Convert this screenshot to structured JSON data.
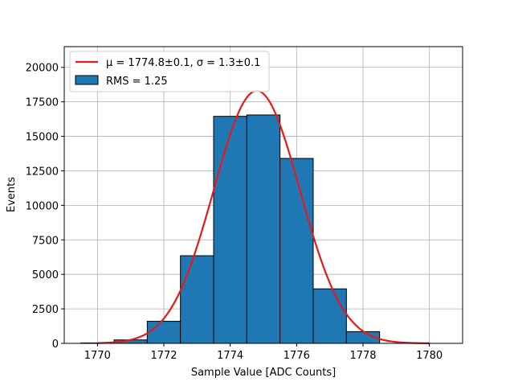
{
  "chart_data": {
    "type": "bar",
    "xlabel": "Sample Value [ADC Counts]",
    "ylabel": "Events",
    "xlim": [
      1769.0,
      1781.0
    ],
    "ylim": [
      0,
      21500
    ],
    "xticks": [
      1770,
      1772,
      1774,
      1776,
      1778,
      1780
    ],
    "xtick_labels": [
      "1770",
      "1772",
      "1774",
      "1776",
      "1778",
      "1780"
    ],
    "yticks": [
      0,
      2500,
      5000,
      7500,
      10000,
      12500,
      15000,
      17500,
      20000
    ],
    "ytick_labels": [
      "0",
      "2500",
      "5000",
      "7500",
      "10000",
      "12500",
      "15000",
      "17500",
      "20000"
    ],
    "grid": true,
    "legend_position": "top-left",
    "histogram": {
      "name": "RMS = 1.25",
      "color": "#1f77b4",
      "edge_color": "#000000",
      "bins": [
        {
          "x0": 1769.5,
          "x1": 1770.5,
          "count": 30
        },
        {
          "x0": 1770.5,
          "x1": 1771.5,
          "count": 250
        },
        {
          "x0": 1771.5,
          "x1": 1772.5,
          "count": 1600
        },
        {
          "x0": 1772.5,
          "x1": 1773.5,
          "count": 6350
        },
        {
          "x0": 1773.5,
          "x1": 1774.5,
          "count": 16450
        },
        {
          "x0": 1774.5,
          "x1": 1775.5,
          "count": 16550
        },
        {
          "x0": 1775.5,
          "x1": 1776.5,
          "count": 13400
        },
        {
          "x0": 1776.5,
          "x1": 1777.5,
          "count": 3950
        },
        {
          "x0": 1777.5,
          "x1": 1778.5,
          "count": 850
        }
      ]
    },
    "fit": {
      "name": "μ = 1774.8±0.1, σ = 1.3±0.1",
      "color": "#e41a1c",
      "mu": 1774.8,
      "sigma": 1.3,
      "amplitude": 18300,
      "x_range": [
        1770.0,
        1780.0
      ]
    }
  }
}
